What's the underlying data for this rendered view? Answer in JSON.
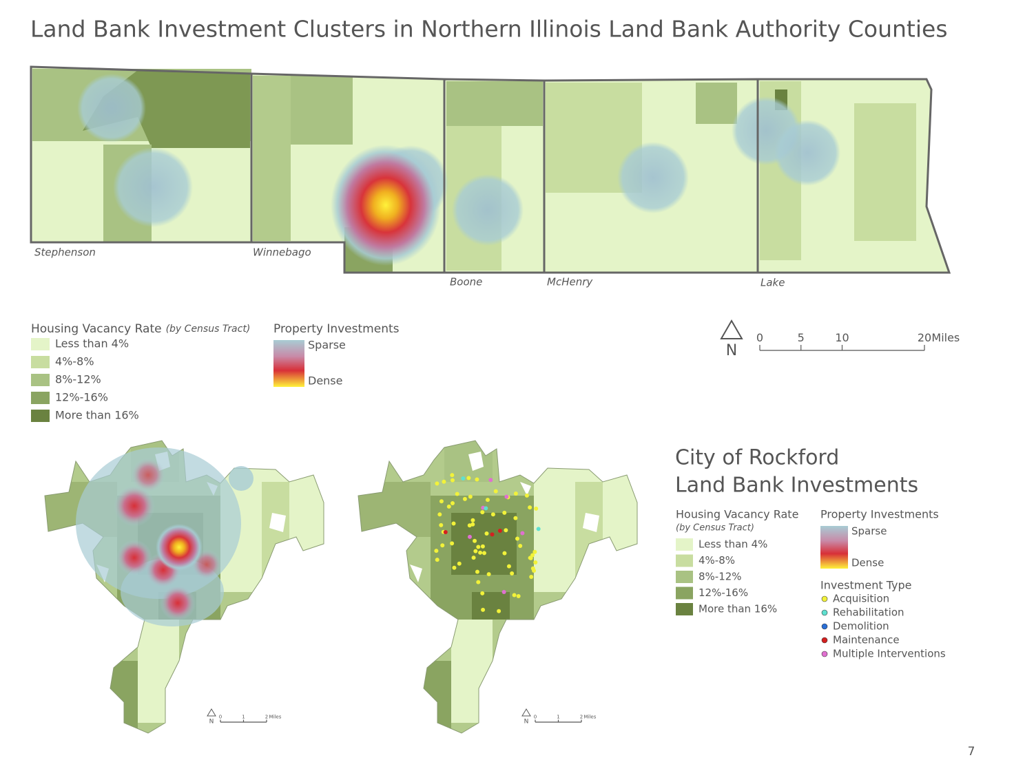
{
  "title": "Land Bank Investment Clusters in Northern Illinois Land Bank Authority Counties",
  "region_map": {
    "counties": [
      "Stephenson",
      "Winnebago",
      "Boone",
      "McHenry",
      "Lake"
    ]
  },
  "legend": {
    "vacancy": {
      "title": "Housing Vacancy Rate",
      "subtitle": "(by Census Tract)",
      "items": [
        {
          "label": "Less than 4%",
          "color": "#e4f4c8"
        },
        {
          "label": "4%-8%",
          "color": "#c8dda0"
        },
        {
          "label": "8%-12%",
          "color": "#a9c283"
        },
        {
          "label": "12%-16%",
          "color": "#8aa461"
        },
        {
          "label": "More than 16%",
          "color": "#6a8240"
        }
      ]
    },
    "investments": {
      "title": "Property Investments",
      "sparse": "Sparse",
      "dense": "Dense"
    }
  },
  "north": "N",
  "scale": {
    "ticks": [
      0,
      5,
      10,
      20
    ],
    "unit": "Miles"
  },
  "city_maps": {
    "north": "N",
    "scale": {
      "ticks": [
        0,
        1,
        2
      ],
      "unit": "Miles"
    }
  },
  "city_panel": {
    "title_lines": [
      "City of Rockford",
      "Land Bank Investments"
    ],
    "vacancy": {
      "title": "Housing Vacancy Rate",
      "subtitle": "(by Census Tract)",
      "items": [
        {
          "label": "Less than 4%",
          "color": "#e4f4c8"
        },
        {
          "label": "4%-8%",
          "color": "#c8dda0"
        },
        {
          "label": "8%-12%",
          "color": "#a9c283"
        },
        {
          "label": "12%-16%",
          "color": "#8aa461"
        },
        {
          "label": "More than 16%",
          "color": "#6a8240"
        }
      ]
    },
    "investments": {
      "title": "Property Investments",
      "sparse": "Sparse",
      "dense": "Dense"
    },
    "investment_type": {
      "title": "Investment Type",
      "items": [
        {
          "label": "Acquisition",
          "color": "#f2f23a"
        },
        {
          "label": "Rehabilitation",
          "color": "#5fe0d0"
        },
        {
          "label": "Demolition",
          "color": "#2a6fd6"
        },
        {
          "label": "Maintenance",
          "color": "#d42020"
        },
        {
          "label": "Multiple Interventions",
          "color": "#e070d0"
        }
      ]
    }
  },
  "page_number": 7
}
